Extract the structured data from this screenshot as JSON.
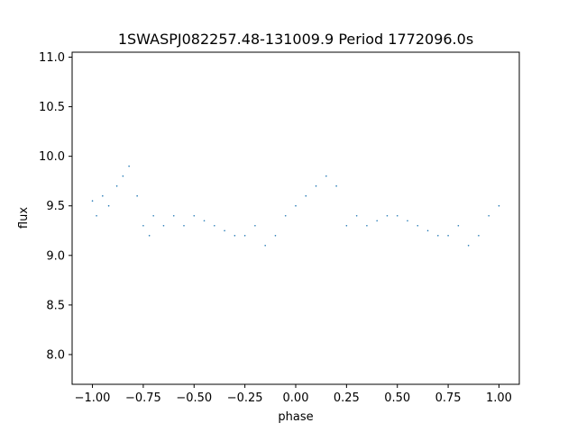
{
  "chart_data": {
    "type": "scatter",
    "title": "1SWASPJ082257.48-131009.9 Period 1772096.0s",
    "xlabel": "phase",
    "ylabel": "flux",
    "xlim": [
      -1.1,
      1.1
    ],
    "ylim": [
      7.7,
      11.05
    ],
    "xticks": [
      -1.0,
      -0.75,
      -0.5,
      -0.25,
      0.0,
      0.25,
      0.5,
      0.75,
      1.0
    ],
    "xtick_labels": [
      "−1.00",
      "−0.75",
      "−0.50",
      "−0.25",
      "0.00",
      "0.25",
      "0.50",
      "0.75",
      "1.00"
    ],
    "yticks": [
      8.0,
      8.5,
      9.0,
      9.5,
      10.0,
      10.5,
      11.0
    ],
    "ytick_labels": [
      "8.0",
      "8.5",
      "9.0",
      "9.5",
      "10.0",
      "10.5",
      "11.0"
    ],
    "grid": false,
    "point_color": "#1f77b4",
    "series": [
      {
        "points": [
          [
            -1.0,
            9.55
          ],
          [
            -0.98,
            9.4
          ],
          [
            -0.95,
            9.6
          ],
          [
            -0.92,
            9.5
          ],
          [
            -0.88,
            9.7
          ],
          [
            -0.85,
            9.8
          ],
          [
            -0.82,
            9.9
          ],
          [
            -0.78,
            9.6
          ],
          [
            -0.75,
            9.3
          ],
          [
            -0.72,
            9.2
          ],
          [
            -0.7,
            9.4
          ],
          [
            -0.65,
            9.3
          ],
          [
            -0.6,
            9.4
          ],
          [
            -0.55,
            9.3
          ],
          [
            -0.5,
            9.4
          ],
          [
            -0.45,
            9.35
          ],
          [
            -0.4,
            9.3
          ],
          [
            -0.35,
            9.25
          ],
          [
            -0.3,
            9.2
          ],
          [
            -0.25,
            9.2
          ],
          [
            -0.2,
            9.3
          ],
          [
            -0.15,
            9.1
          ],
          [
            -0.1,
            9.2
          ],
          [
            -0.05,
            9.4
          ],
          [
            0.0,
            9.5
          ],
          [
            0.05,
            9.6
          ],
          [
            0.1,
            9.7
          ],
          [
            0.15,
            9.8
          ],
          [
            0.2,
            9.7
          ],
          [
            0.25,
            9.3
          ],
          [
            0.3,
            9.4
          ],
          [
            0.35,
            9.3
          ],
          [
            0.4,
            9.35
          ],
          [
            0.45,
            9.4
          ],
          [
            0.5,
            9.4
          ],
          [
            0.55,
            9.35
          ],
          [
            0.6,
            9.3
          ],
          [
            0.65,
            9.25
          ],
          [
            0.7,
            9.2
          ],
          [
            0.75,
            9.2
          ],
          [
            0.8,
            9.3
          ],
          [
            0.85,
            9.1
          ],
          [
            0.9,
            9.2
          ],
          [
            0.95,
            9.4
          ],
          [
            1.0,
            9.5
          ]
        ]
      }
    ]
  }
}
